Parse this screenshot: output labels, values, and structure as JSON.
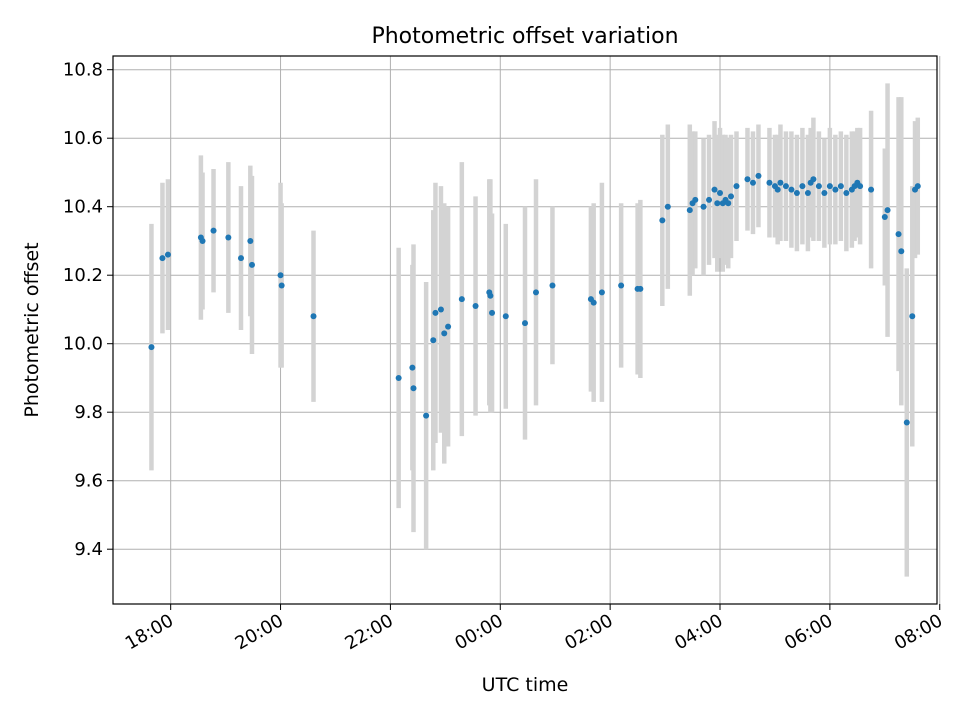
{
  "chart_data": {
    "type": "scatter",
    "title": "Photometric offset variation",
    "xlabel": "UTC time",
    "ylabel": "Photometric offset",
    "x_tick_labels": [
      "18:00",
      "20:00",
      "22:00",
      "00:00",
      "02:00",
      "04:00",
      "06:00",
      "08:00"
    ],
    "x_tick_hours": [
      0,
      2,
      4,
      6,
      8,
      10,
      12,
      14
    ],
    "xlim": [
      -1.05,
      13.95
    ],
    "xlim_note_units": "hours since 18:00 UTC",
    "y_tick_labels": [
      "9.4",
      "9.6",
      "9.8",
      "10.0",
      "10.2",
      "10.4",
      "10.6",
      "10.8"
    ],
    "y_ticks": [
      9.4,
      9.6,
      9.8,
      10.0,
      10.2,
      10.4,
      10.6,
      10.8
    ],
    "ylim": [
      9.24,
      10.84
    ],
    "grid": true,
    "colors": {
      "point": "#1f77b4",
      "errorbar": "#d3d3d3",
      "grid": "#b0b0b0"
    },
    "series": [
      {
        "x": [
          -0.35,
          -0.15,
          -0.05,
          0.55,
          0.58,
          0.78,
          1.05,
          1.28,
          1.45,
          1.48,
          2.0,
          2.02,
          2.6,
          4.15,
          4.4,
          4.42,
          4.65,
          4.78,
          4.82,
          4.92,
          4.98,
          5.05,
          5.3,
          5.55,
          5.8,
          5.82,
          5.85,
          6.1,
          6.45,
          6.65,
          6.95,
          7.65,
          7.7,
          7.85,
          8.2,
          8.5,
          8.55,
          8.95,
          9.05,
          9.45,
          9.5,
          9.55,
          9.7,
          9.8,
          9.9,
          9.95,
          10.0,
          10.05,
          10.1,
          10.15,
          10.2,
          10.3,
          10.5,
          10.6,
          10.7,
          10.9,
          11.0,
          11.05,
          11.1,
          11.2,
          11.3,
          11.4,
          11.5,
          11.6,
          11.65,
          11.7,
          11.8,
          11.9,
          12.0,
          12.1,
          12.2,
          12.3,
          12.4,
          12.45,
          12.5,
          12.55,
          12.75,
          13.0,
          13.05,
          13.25,
          13.3,
          13.4,
          13.5,
          13.55,
          13.6
        ],
        "y": [
          9.99,
          10.25,
          10.26,
          10.31,
          10.3,
          10.33,
          10.31,
          10.25,
          10.3,
          10.23,
          10.2,
          10.17,
          10.08,
          9.9,
          9.93,
          9.87,
          9.79,
          10.01,
          10.09,
          10.1,
          10.03,
          10.05,
          10.13,
          10.11,
          10.15,
          10.14,
          10.09,
          10.08,
          10.06,
          10.15,
          10.17,
          10.13,
          10.12,
          10.15,
          10.17,
          10.16,
          10.16,
          10.36,
          10.4,
          10.39,
          10.41,
          10.42,
          10.4,
          10.42,
          10.45,
          10.41,
          10.44,
          10.41,
          10.42,
          10.41,
          10.43,
          10.46,
          10.48,
          10.47,
          10.49,
          10.47,
          10.46,
          10.45,
          10.47,
          10.46,
          10.45,
          10.44,
          10.46,
          10.44,
          10.47,
          10.48,
          10.46,
          10.44,
          10.46,
          10.45,
          10.46,
          10.44,
          10.45,
          10.46,
          10.47,
          10.46,
          10.45,
          10.37,
          10.39,
          10.32,
          10.27,
          9.77,
          10.08,
          10.45,
          10.46
        ],
        "err": [
          0.36,
          0.22,
          0.22,
          0.24,
          0.2,
          0.18,
          0.22,
          0.21,
          0.22,
          0.26,
          0.27,
          0.24,
          0.25,
          0.38,
          0.3,
          0.42,
          0.39,
          0.38,
          0.38,
          0.36,
          0.38,
          0.35,
          0.4,
          0.32,
          0.33,
          0.34,
          0.29,
          0.27,
          0.34,
          0.33,
          0.23,
          0.27,
          0.29,
          0.32,
          0.24,
          0.25,
          0.26,
          0.25,
          0.24,
          0.25,
          0.21,
          0.2,
          0.2,
          0.19,
          0.2,
          0.2,
          0.19,
          0.2,
          0.19,
          0.19,
          0.18,
          0.16,
          0.15,
          0.15,
          0.15,
          0.16,
          0.15,
          0.16,
          0.17,
          0.16,
          0.17,
          0.17,
          0.17,
          0.17,
          0.16,
          0.18,
          0.16,
          0.16,
          0.17,
          0.16,
          0.16,
          0.17,
          0.17,
          0.16,
          0.16,
          0.17,
          0.23,
          0.2,
          0.37,
          0.4,
          0.45,
          0.45,
          0.38,
          0.2,
          0.2
        ]
      }
    ]
  }
}
